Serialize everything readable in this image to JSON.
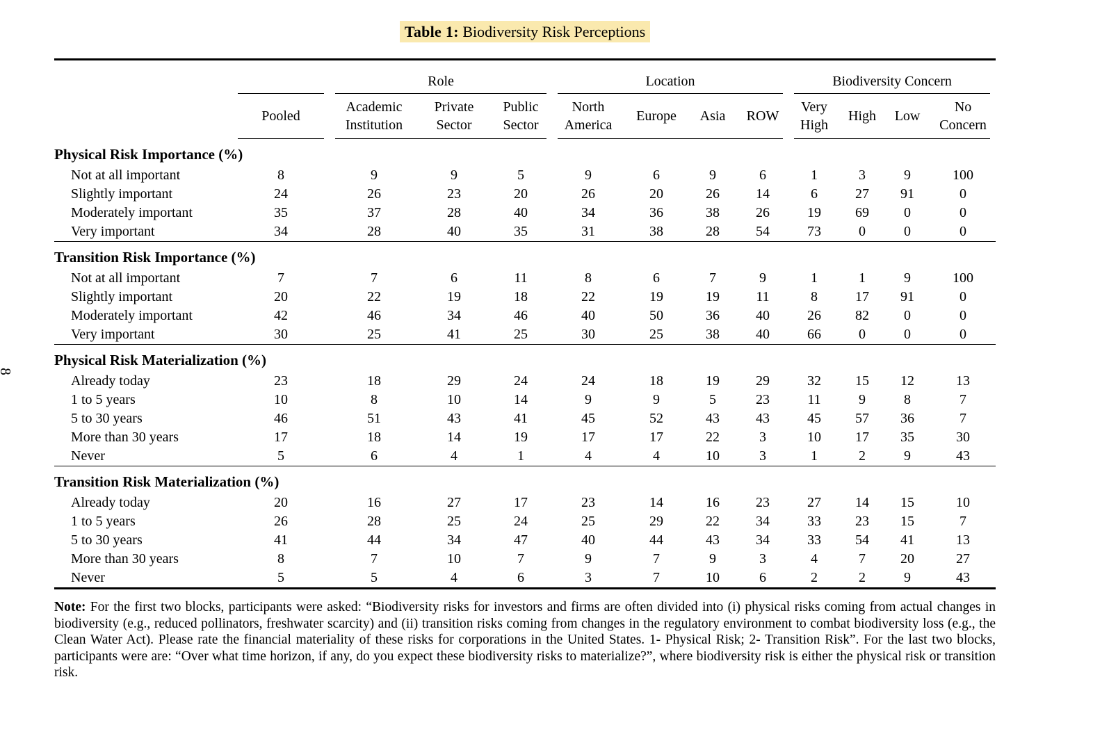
{
  "page": {
    "sideways_number": "8"
  },
  "title": {
    "label": "Table 1:",
    "text": " Biodiversity Risk Perceptions",
    "highlight_color": "#FAE9AE"
  },
  "table": {
    "groups": {
      "role": "Role",
      "location": "Location",
      "concern": "Biodiversity Concern"
    },
    "columns": [
      "Pooled",
      "Academic\nInstitution",
      "Private\nSector",
      "Public\nSector",
      "North\nAmerica",
      "Europe",
      "Asia",
      "ROW",
      "Very\nHigh",
      "High",
      "Low",
      "No\nConcern"
    ],
    "blocks": [
      {
        "header": "Physical Risk Importance (%)",
        "rows": [
          {
            "label": "Not at all important",
            "values": [
              8,
              9,
              9,
              5,
              9,
              6,
              9,
              6,
              1,
              3,
              9,
              100
            ]
          },
          {
            "label": "Slightly important",
            "values": [
              24,
              26,
              23,
              20,
              26,
              20,
              26,
              14,
              6,
              27,
              91,
              0
            ]
          },
          {
            "label": "Moderately important",
            "values": [
              35,
              37,
              28,
              40,
              34,
              36,
              38,
              26,
              19,
              69,
              0,
              0
            ]
          },
          {
            "label": "Very important",
            "values": [
              34,
              28,
              40,
              35,
              31,
              38,
              28,
              54,
              73,
              0,
              0,
              0
            ]
          }
        ]
      },
      {
        "header": "Transition Risk Importance (%)",
        "rows": [
          {
            "label": "Not at all important",
            "values": [
              7,
              7,
              6,
              11,
              8,
              6,
              7,
              9,
              1,
              1,
              9,
              100
            ]
          },
          {
            "label": "Slightly important",
            "values": [
              20,
              22,
              19,
              18,
              22,
              19,
              19,
              11,
              8,
              17,
              91,
              0
            ]
          },
          {
            "label": "Moderately important",
            "values": [
              42,
              46,
              34,
              46,
              40,
              50,
              36,
              40,
              26,
              82,
              0,
              0
            ]
          },
          {
            "label": "Very important",
            "values": [
              30,
              25,
              41,
              25,
              30,
              25,
              38,
              40,
              66,
              0,
              0,
              0
            ]
          }
        ]
      },
      {
        "header": "Physical Risk Materialization (%)",
        "rows": [
          {
            "label": "Already today",
            "values": [
              23,
              18,
              29,
              24,
              24,
              18,
              19,
              29,
              32,
              15,
              12,
              13
            ]
          },
          {
            "label": "1 to 5 years",
            "values": [
              10,
              8,
              10,
              14,
              9,
              9,
              5,
              23,
              11,
              9,
              8,
              7
            ]
          },
          {
            "label": "5 to 30 years",
            "values": [
              46,
              51,
              43,
              41,
              45,
              52,
              43,
              43,
              45,
              57,
              36,
              7
            ]
          },
          {
            "label": "More than 30 years",
            "values": [
              17,
              18,
              14,
              19,
              17,
              17,
              22,
              3,
              10,
              17,
              35,
              30
            ]
          },
          {
            "label": "Never",
            "values": [
              5,
              6,
              4,
              1,
              4,
              4,
              10,
              3,
              1,
              2,
              9,
              43
            ]
          }
        ]
      },
      {
        "header": "Transition Risk Materialization (%)",
        "rows": [
          {
            "label": "Already today",
            "values": [
              20,
              16,
              27,
              17,
              23,
              14,
              16,
              23,
              27,
              14,
              15,
              10
            ]
          },
          {
            "label": "1 to 5 years",
            "values": [
              26,
              28,
              25,
              24,
              25,
              29,
              22,
              34,
              33,
              23,
              15,
              7
            ]
          },
          {
            "label": "5 to 30 years",
            "values": [
              41,
              44,
              34,
              47,
              40,
              44,
              43,
              34,
              33,
              54,
              41,
              13
            ]
          },
          {
            "label": "More than 30 years",
            "values": [
              8,
              7,
              10,
              7,
              9,
              7,
              9,
              3,
              4,
              7,
              20,
              27
            ]
          },
          {
            "label": "Never",
            "values": [
              5,
              5,
              4,
              6,
              3,
              7,
              10,
              6,
              2,
              2,
              9,
              43
            ]
          }
        ]
      }
    ]
  },
  "note": {
    "label": "Note:",
    "text": " For the first two blocks, participants were asked: “Biodiversity risks for investors and firms are often divided into (i) physical risks coming from actual changes in biodiversity (e.g., reduced pollinators, freshwater scarcity) and (ii) transition risks coming from changes in the regulatory environment to combat biodiversity loss (e.g., the Clean Water Act). Please rate the financial materiality of these risks for corporations in the United States. 1- Physical Risk; 2- Transition Risk”. For the last two blocks, participants were are: “Over what time horizon, if any, do you expect these biodiversity risks to materialize?”, where biodiversity risk is either the physical risk or transition risk."
  }
}
